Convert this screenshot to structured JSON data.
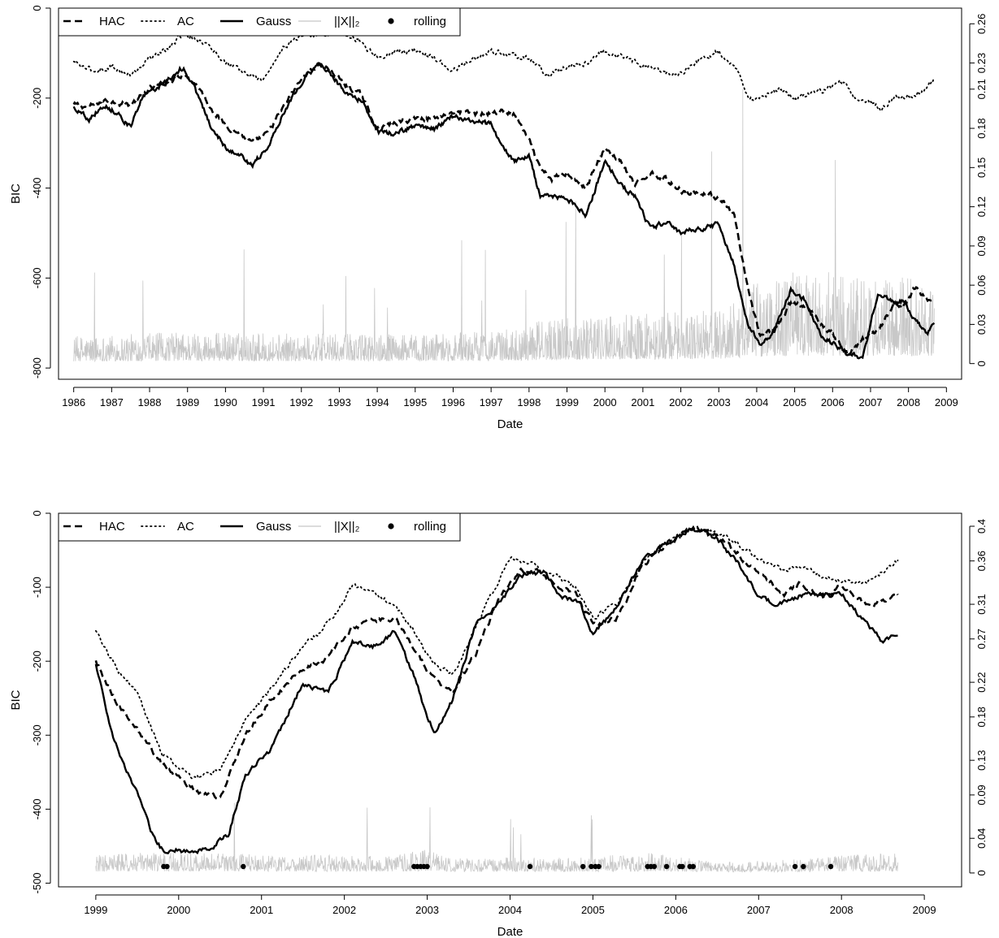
{
  "chart_data": [
    {
      "type": "line",
      "xlabel": "Date",
      "ylabel": "BIC",
      "xlim": [
        1985.6,
        2009.4
      ],
      "ylim": [
        -825,
        0
      ],
      "xticks": [
        1986,
        1987,
        1988,
        1989,
        1990,
        1991,
        1992,
        1993,
        1994,
        1995,
        1996,
        1997,
        1998,
        1999,
        2000,
        2001,
        2002,
        2003,
        2004,
        2005,
        2006,
        2007,
        2008,
        2009
      ],
      "xtick_labels": [
        "1986",
        "1987",
        "1988",
        "1989",
        "1990",
        "1991",
        "1992",
        "1993",
        "1994",
        "1995",
        "1996",
        "1997",
        "1998",
        "1999",
        "2000",
        "2001",
        "2002",
        "2003",
        "2004",
        "2005",
        "2006",
        "2007",
        "2008",
        "2009"
      ],
      "yticks": [
        0,
        -200,
        -400,
        -600,
        -800
      ],
      "ytick_labels": [
        "0",
        "-200",
        "-400",
        "-600",
        "-800"
      ],
      "y2lim": [
        -0.012,
        0.272
      ],
      "y2ticks": [
        0,
        0.03,
        0.06,
        0.09,
        0.12,
        0.15,
        0.18,
        0.21,
        0.23,
        0.26
      ],
      "y2tick_labels": [
        "0",
        "0.03",
        "0.06",
        "0.09",
        "0.12",
        "0.15",
        "0.18",
        "0.21",
        "0.23",
        "0.26"
      ],
      "legend": {
        "position": "top-left",
        "entries": [
          "HAC",
          "AC",
          "Gauss",
          "||X||₂",
          "rolling"
        ]
      },
      "series": [
        {
          "name": "HAC",
          "style": "dashed",
          "color": "#000000",
          "axis": "left",
          "x": [
            1986.0,
            1986.4,
            1986.8,
            1987.5,
            1988.0,
            1988.5,
            1988.9,
            1989.3,
            1989.6,
            1990.0,
            1990.3,
            1990.7,
            1991.1,
            1991.6,
            1992.1,
            1992.5,
            1992.8,
            1993.2,
            1993.6,
            1994.0,
            1994.5,
            1995.0,
            1995.5,
            1996.0,
            1996.5,
            1997.0,
            1997.3,
            1997.6,
            1998.0,
            1998.3,
            1998.6,
            1999.0,
            1999.5,
            2000.0,
            2000.4,
            2000.8,
            2001.2,
            2001.6,
            2002.0,
            2002.5,
            2003.0,
            2003.4,
            2003.75,
            2004.1,
            2004.5,
            2004.9,
            2005.3,
            2005.7,
            2006.0,
            2006.4,
            2006.8,
            2007.2,
            2007.6,
            2007.9,
            2008.2,
            2008.5,
            2008.68
          ],
          "y": [
            -215,
            -220,
            -205,
            -215,
            -180,
            -165,
            -145,
            -175,
            -220,
            -260,
            -275,
            -300,
            -280,
            -210,
            -145,
            -125,
            -140,
            -175,
            -195,
            -270,
            -255,
            -245,
            -245,
            -230,
            -235,
            -235,
            -230,
            -235,
            -295,
            -360,
            -380,
            -365,
            -400,
            -310,
            -340,
            -395,
            -365,
            -380,
            -405,
            -410,
            -420,
            -460,
            -620,
            -730,
            -715,
            -655,
            -665,
            -700,
            -725,
            -770,
            -735,
            -715,
            -660,
            -660,
            -620,
            -650,
            -650
          ]
        },
        {
          "name": "AC",
          "style": "dotted",
          "color": "#000000",
          "axis": "left",
          "x": [
            1986.0,
            1986.5,
            1987.0,
            1987.5,
            1988.0,
            1988.5,
            1988.9,
            1989.5,
            1990.0,
            1990.5,
            1991.0,
            1991.5,
            1992.0,
            1992.5,
            1993.0,
            1993.5,
            1994.0,
            1994.5,
            1995.0,
            1995.5,
            1996.0,
            1996.5,
            1997.0,
            1997.5,
            1998.0,
            1998.5,
            1999.0,
            1999.5,
            2000.0,
            2000.5,
            2001.0,
            2001.5,
            2002.0,
            2002.5,
            2003.0,
            2003.5,
            2003.8,
            2004.2,
            2004.6,
            2005.0,
            2005.5,
            2006.0,
            2006.3,
            2006.6,
            2007.0,
            2007.3,
            2007.6,
            2008.0,
            2008.4,
            2008.68
          ],
          "y": [
            -120,
            -140,
            -130,
            -150,
            -110,
            -90,
            -55,
            -80,
            -120,
            -145,
            -160,
            -90,
            -60,
            -60,
            -50,
            -70,
            -110,
            -95,
            -95,
            -110,
            -140,
            -115,
            -95,
            -105,
            -110,
            -150,
            -130,
            -120,
            -95,
            -110,
            -125,
            -145,
            -145,
            -115,
            -95,
            -140,
            -205,
            -195,
            -180,
            -200,
            -190,
            -175,
            -160,
            -200,
            -210,
            -225,
            -200,
            -195,
            -185,
            -160
          ]
        },
        {
          "name": "Gauss",
          "style": "solid",
          "color": "#000000",
          "axis": "left",
          "x": [
            1986.0,
            1986.4,
            1986.8,
            1987.2,
            1987.5,
            1987.8,
            1988.2,
            1988.5,
            1988.9,
            1989.3,
            1989.6,
            1990.0,
            1990.3,
            1990.7,
            1991.1,
            1991.6,
            1992.1,
            1992.5,
            1992.8,
            1993.2,
            1993.6,
            1994.0,
            1994.5,
            1995.0,
            1995.5,
            1996.0,
            1996.5,
            1997.0,
            1997.3,
            1997.6,
            1998.0,
            1998.3,
            1998.6,
            1999.0,
            1999.5,
            2000.0,
            2000.4,
            2000.8,
            2001.2,
            2001.6,
            2002.0,
            2002.5,
            2003.0,
            2003.4,
            2003.75,
            2004.1,
            2004.5,
            2004.9,
            2005.3,
            2005.7,
            2006.0,
            2006.4,
            2006.8,
            2007.2,
            2007.6,
            2007.9,
            2008.2,
            2008.5,
            2008.68
          ],
          "y": [
            -220,
            -245,
            -215,
            -235,
            -265,
            -200,
            -175,
            -160,
            -130,
            -200,
            -260,
            -310,
            -320,
            -350,
            -310,
            -220,
            -150,
            -125,
            -150,
            -190,
            -205,
            -275,
            -280,
            -260,
            -270,
            -240,
            -250,
            -260,
            -310,
            -340,
            -330,
            -420,
            -415,
            -425,
            -460,
            -340,
            -390,
            -420,
            -490,
            -475,
            -500,
            -490,
            -480,
            -570,
            -700,
            -750,
            -710,
            -625,
            -650,
            -730,
            -745,
            -770,
            -775,
            -630,
            -655,
            -650,
            -700,
            -720,
            -705
          ]
        },
        {
          "name": "||X||₂",
          "style": "spikes",
          "color": "#c8c8c8",
          "axis": "right",
          "x": [
            1986.0,
            1989.0,
            1992.0,
            1995.0,
            1997.5,
            1998.5,
            2000.0,
            2001.5,
            2003.0,
            2003.8,
            2005.0,
            2006.0,
            2007.0,
            2008.0,
            2008.68
          ],
          "y": [
            0.012,
            0.014,
            0.013,
            0.013,
            0.015,
            0.02,
            0.022,
            0.022,
            0.024,
            0.035,
            0.04,
            0.04,
            0.036,
            0.038,
            0.036
          ]
        }
      ],
      "rolling": []
    },
    {
      "type": "line",
      "xlabel": "Date",
      "ylabel": "BIC",
      "xlim": [
        1998.55,
        2009.45
      ],
      "ylim": [
        -505,
        0
      ],
      "xticks": [
        1999,
        2000,
        2001,
        2002,
        2003,
        2004,
        2005,
        2006,
        2007,
        2008,
        2009
      ],
      "xtick_labels": [
        "1999",
        "2000",
        "2001",
        "2002",
        "2003",
        "2004",
        "2005",
        "2006",
        "2007",
        "2008",
        "2009"
      ],
      "yticks": [
        0,
        -100,
        -200,
        -300,
        -400,
        -500
      ],
      "ytick_labels": [
        "0",
        "-100",
        "-200",
        "-300",
        "-400",
        "-500"
      ],
      "y2lim": [
        -0.016,
        0.415
      ],
      "y2ticks": [
        0,
        0.04,
        0.09,
        0.13,
        0.18,
        0.22,
        0.27,
        0.31,
        0.36,
        0.4
      ],
      "y2tick_labels": [
        "0",
        "0.04",
        "0.09",
        "0.13",
        "0.18",
        "0.22",
        "0.27",
        "0.31",
        "0.36",
        "0.4"
      ],
      "legend": {
        "position": "top-left",
        "entries": [
          "HAC",
          "AC",
          "Gauss",
          "||X||₂",
          "rolling"
        ]
      },
      "series": [
        {
          "name": "HAC",
          "style": "dashed",
          "color": "#000000",
          "axis": "left",
          "x": [
            1999.0,
            1999.25,
            1999.5,
            1999.8,
            2000.0,
            2000.2,
            2000.5,
            2000.8,
            2001.1,
            2001.5,
            2001.8,
            2002.1,
            2002.4,
            2002.6,
            2002.85,
            2003.05,
            2003.3,
            2003.6,
            2003.85,
            2004.1,
            2004.3,
            2004.55,
            2004.8,
            2005.0,
            2005.3,
            2005.6,
            2005.9,
            2006.2,
            2006.5,
            2006.8,
            2007.1,
            2007.3,
            2007.5,
            2007.8,
            2008.0,
            2008.3,
            2008.68
          ],
          "y": [
            -200,
            -255,
            -290,
            -340,
            -355,
            -375,
            -385,
            -300,
            -255,
            -210,
            -195,
            -155,
            -145,
            -140,
            -185,
            -220,
            -245,
            -185,
            -120,
            -80,
            -75,
            -95,
            -110,
            -150,
            -140,
            -70,
            -40,
            -20,
            -30,
            -60,
            -90,
            -110,
            -95,
            -115,
            -95,
            -125,
            -110
          ]
        },
        {
          "name": "AC",
          "style": "dotted",
          "color": "#000000",
          "axis": "left",
          "x": [
            1999.0,
            1999.25,
            1999.5,
            1999.8,
            2000.0,
            2000.2,
            2000.5,
            2000.8,
            2001.1,
            2001.5,
            2001.8,
            2002.1,
            2002.4,
            2002.6,
            2002.85,
            2003.05,
            2003.3,
            2003.6,
            2003.85,
            2004.0,
            2004.3,
            2004.55,
            2004.8,
            2005.0,
            2005.3,
            2005.6,
            2005.9,
            2006.2,
            2006.5,
            2006.8,
            2007.1,
            2007.3,
            2007.5,
            2007.8,
            2008.0,
            2008.3,
            2008.68
          ],
          "y": [
            -160,
            -210,
            -245,
            -325,
            -345,
            -360,
            -345,
            -280,
            -240,
            -180,
            -150,
            -100,
            -110,
            -125,
            -160,
            -200,
            -220,
            -150,
            -95,
            -60,
            -70,
            -85,
            -100,
            -140,
            -120,
            -65,
            -40,
            -20,
            -25,
            -45,
            -70,
            -75,
            -75,
            -85,
            -90,
            -95,
            -65
          ]
        },
        {
          "name": "Gauss",
          "style": "solid",
          "color": "#000000",
          "axis": "left",
          "x": [
            1999.0,
            1999.2,
            1999.5,
            1999.7,
            1999.8,
            2000.0,
            2000.2,
            2000.4,
            2000.6,
            2000.8,
            2001.1,
            2001.5,
            2001.8,
            2002.1,
            2002.4,
            2002.6,
            2002.85,
            2003.0,
            2003.1,
            2003.3,
            2003.6,
            2003.85,
            2004.1,
            2004.4,
            2004.6,
            2004.85,
            2005.0,
            2005.2,
            2005.6,
            2005.9,
            2006.2,
            2006.5,
            2006.8,
            2007.0,
            2007.2,
            2007.5,
            2007.8,
            2008.0,
            2008.2,
            2008.5,
            2008.68
          ],
          "y": [
            -205,
            -300,
            -380,
            -440,
            -455,
            -455,
            -460,
            -450,
            -435,
            -355,
            -320,
            -230,
            -245,
            -175,
            -180,
            -160,
            -220,
            -280,
            -295,
            -255,
            -145,
            -125,
            -85,
            -80,
            -110,
            -120,
            -165,
            -140,
            -65,
            -40,
            -20,
            -35,
            -75,
            -110,
            -125,
            -110,
            -110,
            -110,
            -135,
            -175,
            -165
          ]
        },
        {
          "name": "||X||₂",
          "style": "spikes",
          "color": "#c8c8c8",
          "axis": "right",
          "x": [
            1999.0,
            1999.8,
            2000.5,
            2001.5,
            2002.5,
            2002.9,
            2003.5,
            2004.5,
            2005.0,
            2005.7,
            2006.5,
            2007.5,
            2008.0,
            2008.68
          ],
          "y": [
            0.012,
            0.014,
            0.013,
            0.012,
            0.011,
            0.016,
            0.01,
            0.01,
            0.011,
            0.014,
            0.007,
            0.009,
            0.012,
            0.013
          ]
        }
      ],
      "rolling": [
        1999.82,
        1999.86,
        2000.78,
        2002.84,
        2002.88,
        2002.92,
        2002.96,
        2003.0,
        2004.24,
        2004.88,
        2004.98,
        2005.03,
        2005.07,
        2005.66,
        2005.7,
        2005.74,
        2005.89,
        2006.05,
        2006.08,
        2006.17,
        2006.21,
        2007.44,
        2007.54,
        2007.87
      ]
    }
  ]
}
